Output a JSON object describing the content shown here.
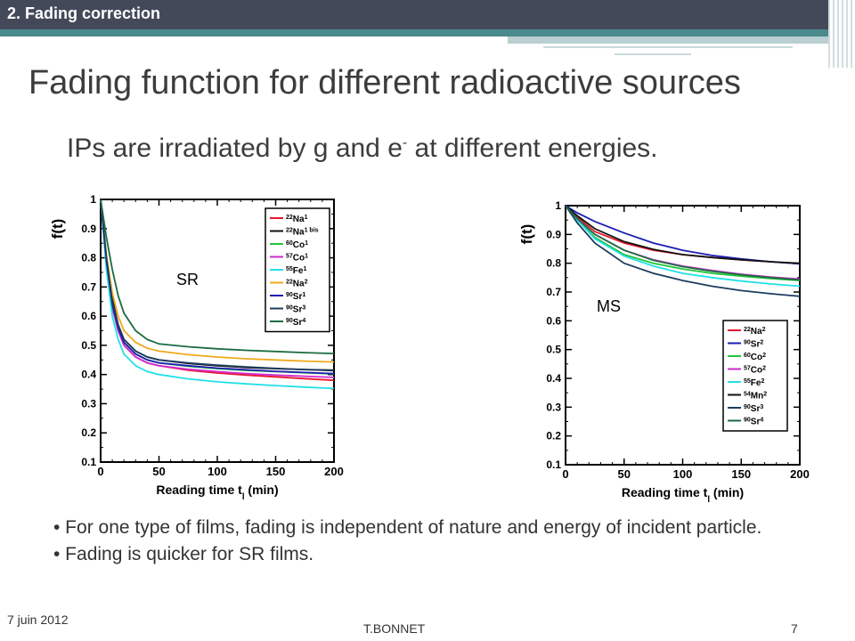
{
  "header": {
    "section": "2. Fading correction"
  },
  "slide": {
    "title": "Fading function for different radioactive sources",
    "subtitle_main": "IPs are irradiated by g and e",
    "subtitle_sup": "-",
    "subtitle_tail": " at different energies."
  },
  "bullets": [
    "• For one type of films, fading is independent of nature and energy of incident particle.",
    "• Fading is quicker for SR films."
  ],
  "footer": {
    "date": "7 juin 2012",
    "author": "T.BONNET",
    "page": "7"
  },
  "chart_data": [
    {
      "type": "line",
      "panel_label": "SR",
      "ylabel": "f(t)",
      "xlabel_main": "Reading time t",
      "xlabel_sub": "l",
      "xlabel_tail": " (min)",
      "xlim": [
        0,
        200
      ],
      "ylim": [
        0.1,
        1
      ],
      "xticks": [
        0,
        50,
        100,
        150,
        200
      ],
      "yticks": [
        0.1,
        0.2,
        0.3,
        0.4,
        0.5,
        0.6,
        0.7,
        0.8,
        0.9,
        1
      ],
      "legend_position": "top-right",
      "x": [
        0,
        5,
        10,
        15,
        20,
        30,
        40,
        50,
        75,
        100,
        125,
        150,
        175,
        200
      ],
      "series": [
        {
          "name": "22Na1",
          "sup": "22",
          "base": "Na",
          "idx": "1",
          "color": "#e8192c",
          "values": [
            1,
            0.78,
            0.63,
            0.55,
            0.5,
            0.46,
            0.44,
            0.43,
            0.415,
            0.405,
            0.398,
            0.392,
            0.386,
            0.38
          ]
        },
        {
          "name": "22Na1 bis",
          "sup": "22",
          "base": "Na",
          "idx": "1 bis",
          "color": "#111111",
          "values": [
            1,
            0.8,
            0.66,
            0.57,
            0.52,
            0.48,
            0.46,
            0.45,
            0.438,
            0.43,
            0.424,
            0.42,
            0.417,
            0.415
          ]
        },
        {
          "name": "60Co1",
          "sup": "60",
          "base": "Co",
          "idx": "1",
          "color": "#22c43a",
          "values": [
            1,
            0.79,
            0.64,
            0.56,
            0.51,
            0.47,
            0.45,
            0.44,
            0.428,
            0.42,
            0.414,
            0.41,
            0.406,
            0.402
          ]
        },
        {
          "name": "57Co1",
          "sup": "57",
          "base": "Co",
          "idx": "1",
          "color": "#d02bd0",
          "values": [
            1,
            0.78,
            0.63,
            0.55,
            0.5,
            0.46,
            0.44,
            0.43,
            0.418,
            0.41,
            0.403,
            0.398,
            0.394,
            0.39
          ]
        },
        {
          "name": "55Fe1",
          "sup": "55",
          "base": "Fe",
          "idx": "1",
          "color": "#22e0e8",
          "values": [
            1,
            0.76,
            0.6,
            0.52,
            0.47,
            0.43,
            0.41,
            0.4,
            0.385,
            0.375,
            0.368,
            0.362,
            0.357,
            0.352
          ]
        },
        {
          "name": "22Na2",
          "sup": "22",
          "base": "Na",
          "idx": "2",
          "color": "#f0a91c",
          "values": [
            1,
            0.81,
            0.68,
            0.6,
            0.55,
            0.51,
            0.49,
            0.48,
            0.468,
            0.46,
            0.454,
            0.45,
            0.446,
            0.443
          ]
        },
        {
          "name": "90Sr1",
          "sup": "90",
          "base": "Sr",
          "idx": "1",
          "color": "#1d1db0",
          "values": [
            1,
            0.79,
            0.64,
            0.56,
            0.51,
            0.47,
            0.45,
            0.44,
            0.43,
            0.422,
            0.416,
            0.411,
            0.407,
            0.403
          ]
        },
        {
          "name": "90Sr3",
          "sup": "90",
          "base": "Sr",
          "idx": "3",
          "color": "#1d3d5e",
          "values": [
            1,
            0.8,
            0.65,
            0.57,
            0.52,
            0.48,
            0.46,
            0.45,
            0.44,
            0.432,
            0.426,
            0.421,
            0.417,
            0.413
          ]
        },
        {
          "name": "90Sr4",
          "sup": "90",
          "base": "Sr",
          "idx": "4",
          "color": "#1c6b42",
          "values": [
            1,
            0.87,
            0.76,
            0.67,
            0.61,
            0.55,
            0.52,
            0.505,
            0.495,
            0.488,
            0.483,
            0.479,
            0.475,
            0.472
          ]
        }
      ]
    },
    {
      "type": "line",
      "panel_label": "MS",
      "ylabel": "f(t)",
      "xlabel_main": "Reading time t",
      "xlabel_sub": "l",
      "xlabel_tail": " (min)",
      "xlim": [
        0,
        200
      ],
      "ylim": [
        0.1,
        1
      ],
      "xticks": [
        0,
        50,
        100,
        150,
        200
      ],
      "yticks": [
        0.1,
        0.2,
        0.3,
        0.4,
        0.5,
        0.6,
        0.7,
        0.8,
        0.9,
        1
      ],
      "legend_position": "bottom-right",
      "x": [
        0,
        10,
        25,
        50,
        75,
        100,
        125,
        150,
        175,
        200
      ],
      "series": [
        {
          "name": "22Na2",
          "sup": "22",
          "base": "Na",
          "idx": "2",
          "color": "#e8192c",
          "values": [
            1,
            0.96,
            0.91,
            0.87,
            0.845,
            0.83,
            0.82,
            0.812,
            0.805,
            0.798
          ]
        },
        {
          "name": "90Sr2",
          "sup": "90",
          "base": "Sr",
          "idx": "2",
          "color": "#1d1db0",
          "values": [
            1,
            0.975,
            0.945,
            0.905,
            0.87,
            0.845,
            0.827,
            0.815,
            0.805,
            0.798
          ]
        },
        {
          "name": "60Co2",
          "sup": "60",
          "base": "Co",
          "idx": "2",
          "color": "#22c43a",
          "values": [
            1,
            0.95,
            0.89,
            0.83,
            0.8,
            0.78,
            0.765,
            0.755,
            0.747,
            0.74
          ]
        },
        {
          "name": "57Co2",
          "sup": "57",
          "base": "Co",
          "idx": "2",
          "color": "#d02bd0",
          "values": [
            1,
            0.955,
            0.9,
            0.845,
            0.812,
            0.79,
            0.775,
            0.762,
            0.752,
            0.745
          ]
        },
        {
          "name": "55Fe2",
          "sup": "55",
          "base": "Fe",
          "idx": "2",
          "color": "#22e0e8",
          "values": [
            1,
            0.95,
            0.885,
            0.825,
            0.79,
            0.765,
            0.75,
            0.738,
            0.728,
            0.72
          ]
        },
        {
          "name": "54Mn2",
          "sup": "54",
          "base": "Mn",
          "idx": "2",
          "color": "#111111",
          "values": [
            1,
            0.965,
            0.92,
            0.875,
            0.848,
            0.83,
            0.82,
            0.812,
            0.805,
            0.8
          ]
        },
        {
          "name": "90Sr3",
          "sup": "90",
          "base": "Sr",
          "idx": "3",
          "color": "#1d3d5e",
          "values": [
            1,
            0.94,
            0.87,
            0.8,
            0.765,
            0.74,
            0.72,
            0.705,
            0.694,
            0.685
          ]
        },
        {
          "name": "90Sr4",
          "sup": "90",
          "base": "Sr",
          "idx": "4",
          "color": "#1c6b42",
          "values": [
            1,
            0.955,
            0.9,
            0.845,
            0.81,
            0.788,
            0.772,
            0.76,
            0.75,
            0.742
          ]
        }
      ]
    }
  ]
}
